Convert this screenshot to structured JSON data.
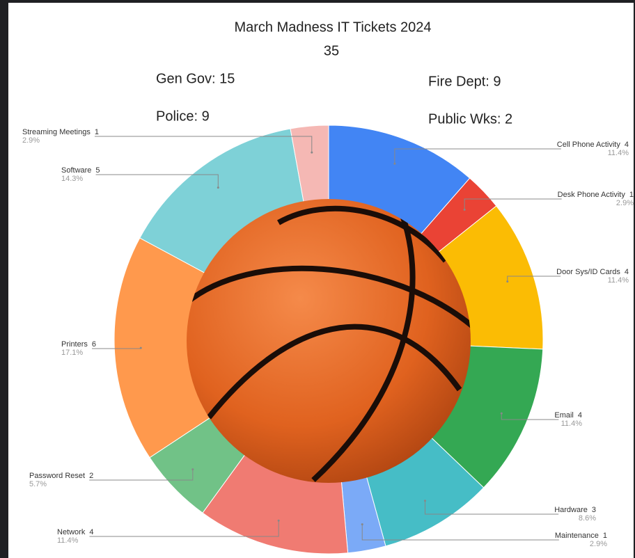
{
  "chart_data": {
    "type": "donut",
    "title": "March Madness IT Tickets 2024",
    "total": 35,
    "annotations": [
      "Gen Gov:  15",
      "Police:  9",
      "Fire Dept:  9",
      "Public Wks:  2"
    ],
    "categories": [
      "Cell Phone Activity",
      "Desk Phone Activity",
      "Door Sys/ID Cards",
      "Email",
      "Hardware",
      "Maintenance",
      "Network",
      "Password Reset",
      "Printers",
      "Software",
      "Streaming Meetings"
    ],
    "values": [
      4,
      1,
      4,
      4,
      3,
      1,
      4,
      2,
      6,
      5,
      1
    ],
    "percent_labels": [
      "11.4%",
      "2.9%",
      "11.4%",
      "11.4%",
      "8.6%",
      "2.9%",
      "11.4%",
      "5.7%",
      "17.1%",
      "14.3%",
      "2.9%"
    ],
    "colors": [
      "#4285f4",
      "#ea4335",
      "#fbbc04",
      "#34a853",
      "#46bdc6",
      "#7baaf7",
      "#f07b72",
      "#71c287",
      "#ff994d",
      "#7ed1d7",
      "#f5b8b4"
    ]
  }
}
